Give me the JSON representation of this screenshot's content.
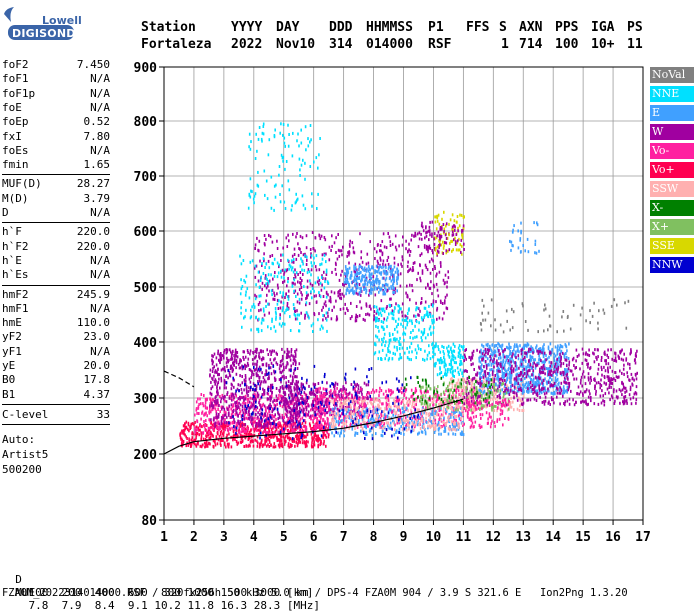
{
  "logo": {
    "top": "Lowell",
    "bottom": "DIGISONDE",
    "brand_color": "#3a64a8"
  },
  "header": {
    "labels": {
      "station": "Station",
      "year": "YYYY",
      "day": "DAY",
      "ddd": "DDD",
      "time": "HHMMSS",
      "p1": "P1",
      "ffs": "FFS",
      "s": "S",
      "axn": "AXN",
      "pps": "PPS",
      "iga": "IGA",
      "ps": "PS"
    },
    "values": {
      "station": "Fortaleza",
      "year": "2022",
      "day": "Nov10",
      "ddd": "314",
      "time": "014000",
      "p1": "RSF",
      "ffs": "",
      "s": "1",
      "axn": "714",
      "pps": "100",
      "iga": "10+",
      "ps": "11"
    }
  },
  "params": {
    "group1": [
      {
        "label": "foF2",
        "value": "7.450"
      },
      {
        "label": "foF1",
        "value": "N/A"
      },
      {
        "label": "foF1p",
        "value": "N/A"
      },
      {
        "label": "foE",
        "value": "N/A"
      },
      {
        "label": "foEp",
        "value": "0.52"
      },
      {
        "label": "fxI",
        "value": "7.80"
      },
      {
        "label": "foEs",
        "value": "N/A"
      },
      {
        "label": "fmin",
        "value": "1.65"
      }
    ],
    "group2": [
      {
        "label": "MUF(D)",
        "value": "28.27"
      },
      {
        "label": "M(D)",
        "value": "3.79"
      },
      {
        "label": "D",
        "value": "N/A"
      }
    ],
    "group3": [
      {
        "label": "h`F",
        "value": "220.0"
      },
      {
        "label": "h`F2",
        "value": "220.0"
      },
      {
        "label": "h`E",
        "value": "N/A"
      },
      {
        "label": "h`Es",
        "value": "N/A"
      }
    ],
    "group4": [
      {
        "label": "hmF2",
        "value": "245.9"
      },
      {
        "label": "hmF1",
        "value": "N/A"
      },
      {
        "label": "hmE",
        "value": "110.0"
      },
      {
        "label": "yF2",
        "value": "23.0"
      },
      {
        "label": "yF1",
        "value": "N/A"
      },
      {
        "label": "yE",
        "value": "20.0"
      },
      {
        "label": "B0",
        "value": "17.8"
      },
      {
        "label": "B1",
        "value": "4.37"
      }
    ],
    "clevel": {
      "label": "C-level",
      "value": "33"
    },
    "auto": [
      "Auto:",
      "Artist5",
      "500200"
    ]
  },
  "chart_data": {
    "type": "scatter",
    "title": "",
    "xlabel": "",
    "ylabel": "",
    "xlim": [
      1,
      17
    ],
    "ylim": [
      80,
      900
    ],
    "xticks": [
      "1",
      "2",
      "3",
      "4",
      "5",
      "6",
      "7",
      "8",
      "9",
      "10",
      "11",
      "12",
      "13",
      "14",
      "15",
      "16",
      "17"
    ],
    "yticks": [
      "80",
      "200",
      "300",
      "400",
      "500",
      "600",
      "700",
      "800",
      "900"
    ],
    "ytick_values": [
      80,
      200,
      300,
      400,
      500,
      600,
      700,
      800,
      900
    ],
    "grid": true,
    "legend_placement": "right",
    "legend": [
      {
        "name": "NoVal",
        "color": "#808080",
        "text_color": "#ffffff"
      },
      {
        "name": "NNE",
        "color": "#00e0ff",
        "text_color": "#ffffff"
      },
      {
        "name": "E",
        "color": "#40a0ff",
        "text_color": "#ffffff"
      },
      {
        "name": "W",
        "color": "#a000a0",
        "text_color": "#ffffff"
      },
      {
        "name": "Vo-",
        "color": "#ff20a0",
        "text_color": "#ffffff"
      },
      {
        "name": "Vo+",
        "color": "#ff0050",
        "text_color": "#ffffff"
      },
      {
        "name": "SSW",
        "color": "#ffb0b0",
        "text_color": "#ffffff"
      },
      {
        "name": "X-",
        "color": "#008000",
        "text_color": "#ffffff"
      },
      {
        "name": "X+",
        "color": "#80c060",
        "text_color": "#ffffff"
      },
      {
        "name": "SSE",
        "color": "#d8d800",
        "text_color": "#ffffff"
      },
      {
        "name": "NNW",
        "color": "#0000d0",
        "text_color": "#ffffff"
      }
    ],
    "profile_curve": [
      [
        1.0,
        200
      ],
      [
        1.5,
        214
      ],
      [
        2,
        222
      ],
      [
        3,
        228
      ],
      [
        4,
        232
      ],
      [
        5,
        236
      ],
      [
        6,
        240
      ],
      [
        7,
        246
      ],
      [
        8,
        256
      ],
      [
        9,
        268
      ],
      [
        10,
        282
      ],
      [
        11,
        298
      ]
    ],
    "trace_curve": [
      [
        1.0,
        348
      ],
      [
        1.5,
        336
      ],
      [
        2,
        320
      ]
    ],
    "clusters": [
      {
        "cat": "Vo+",
        "x": [
          1.5,
          6.5
        ],
        "y": [
          215,
          260
        ],
        "n": 650
      },
      {
        "cat": "Vo-",
        "x": [
          2.0,
          6.5
        ],
        "y": [
          240,
          310
        ],
        "n": 500
      },
      {
        "cat": "W",
        "x": [
          2.5,
          5.5
        ],
        "y": [
          250,
          390
        ],
        "n": 700
      },
      {
        "cat": "W",
        "x": [
          5.0,
          7.8
        ],
        "y": [
          270,
          330
        ],
        "n": 300
      },
      {
        "cat": "Vo-",
        "x": [
          6.0,
          11.5
        ],
        "y": [
          250,
          320
        ],
        "n": 500
      },
      {
        "cat": "E",
        "x": [
          6.5,
          11.0
        ],
        "y": [
          235,
          285
        ],
        "n": 300
      },
      {
        "cat": "SSW",
        "x": [
          6.5,
          11.0
        ],
        "y": [
          245,
          300
        ],
        "n": 300
      },
      {
        "cat": "W",
        "x": [
          4.0,
          10.5
        ],
        "y": [
          440,
          600
        ],
        "n": 600
      },
      {
        "cat": "E",
        "x": [
          7.0,
          8.8
        ],
        "y": [
          490,
          540
        ],
        "n": 250
      },
      {
        "cat": "NNE",
        "x": [
          8.0,
          10.0
        ],
        "y": [
          370,
          470
        ],
        "n": 220
      },
      {
        "cat": "NNE",
        "x": [
          3.5,
          6.5
        ],
        "y": [
          420,
          560
        ],
        "n": 200
      },
      {
        "cat": "NNE",
        "x": [
          3.8,
          6.2
        ],
        "y": [
          640,
          800
        ],
        "n": 110
      },
      {
        "cat": "NNE",
        "x": [
          10.0,
          11.0
        ],
        "y": [
          340,
          400
        ],
        "n": 120
      },
      {
        "cat": "SSE",
        "x": [
          10.0,
          11.0
        ],
        "y": [
          560,
          640
        ],
        "n": 80
      },
      {
        "cat": "W",
        "x": [
          9.5,
          11.0
        ],
        "y": [
          560,
          620
        ],
        "n": 80
      },
      {
        "cat": "NNW",
        "x": [
          3.0,
          9.5
        ],
        "y": [
          230,
          360
        ],
        "n": 180
      },
      {
        "cat": "SSW",
        "x": [
          10.5,
          13.0
        ],
        "y": [
          280,
          340
        ],
        "n": 250
      },
      {
        "cat": "E",
        "x": [
          11.5,
          14.5
        ],
        "y": [
          310,
          400
        ],
        "n": 650
      },
      {
        "cat": "W",
        "x": [
          11.0,
          16.8
        ],
        "y": [
          290,
          390
        ],
        "n": 650
      },
      {
        "cat": "X+",
        "x": [
          9.5,
          12.5
        ],
        "y": [
          280,
          330
        ],
        "n": 120
      },
      {
        "cat": "X-",
        "x": [
          9.0,
          12.0
        ],
        "y": [
          290,
          340
        ],
        "n": 60
      },
      {
        "cat": "NoVal",
        "x": [
          11.5,
          16.5
        ],
        "y": [
          420,
          480
        ],
        "n": 60
      },
      {
        "cat": "E",
        "x": [
          12.5,
          13.5
        ],
        "y": [
          560,
          620
        ],
        "n": 30
      },
      {
        "cat": "Vo-",
        "x": [
          11.0,
          12.5
        ],
        "y": [
          250,
          300
        ],
        "n": 80
      }
    ]
  },
  "footer": {
    "d_label": "D",
    "d_values": [
      "100",
      "200",
      "400",
      "600",
      "800",
      "1000",
      "1500",
      "3000"
    ],
    "d_unit": "[km]",
    "muf_label": "MUF",
    "muf_values": [
      "7.8",
      "7.9",
      "8.4",
      "9.1",
      "10.2",
      "11.8",
      "16.3",
      "28.3"
    ],
    "muf_unit": "[MHz]",
    "info": "FZA0M_2022314014000.RSF / 320fx256h 50 kHz 5.0 km / DPS-4 FZA0M 904 / 3.9 S 321.6 E   Ion2Png 1.3.20"
  }
}
